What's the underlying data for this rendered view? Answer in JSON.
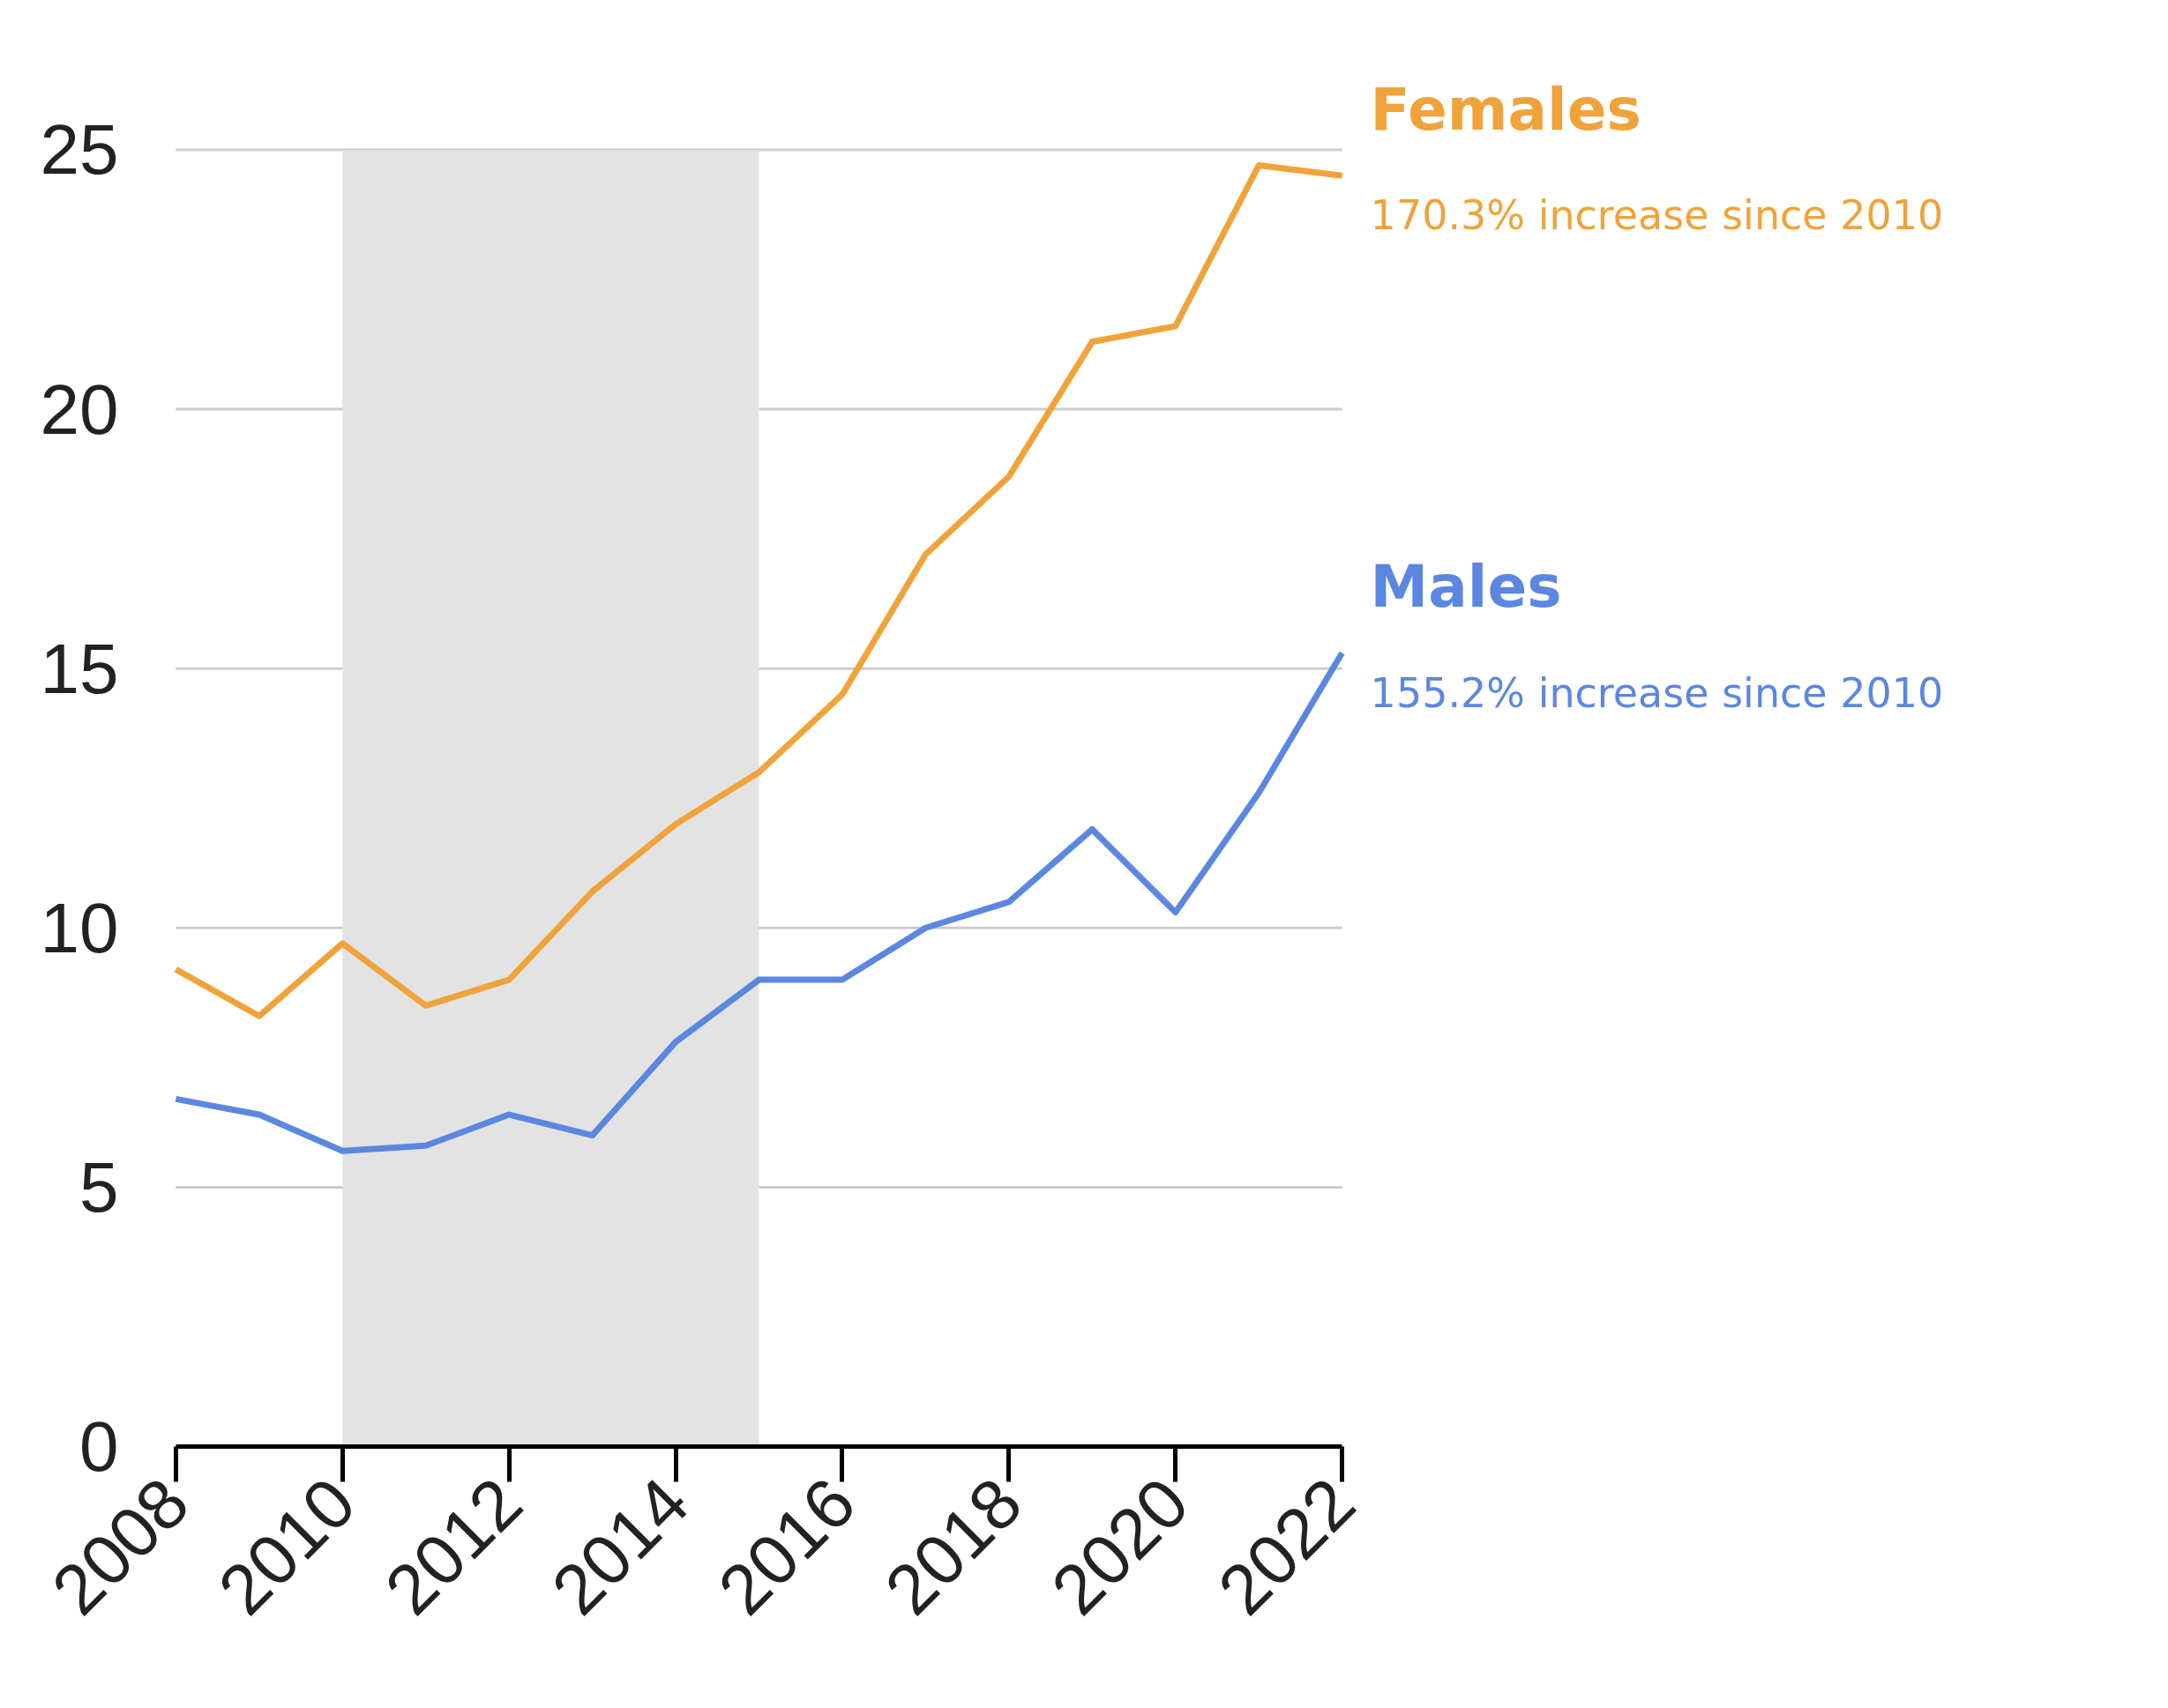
{
  "chart_data": {
    "type": "line",
    "x": [
      2008,
      2009,
      2010,
      2011,
      2012,
      2013,
      2014,
      2015,
      2016,
      2017,
      2018,
      2019,
      2020,
      2021,
      2022
    ],
    "series": [
      {
        "name": "Females",
        "color": "#f0a33a",
        "values": [
          9.2,
          8.3,
          9.7,
          8.5,
          9.0,
          10.7,
          12.0,
          13.0,
          14.5,
          17.2,
          18.7,
          21.3,
          21.6,
          24.7,
          24.5
        ]
      },
      {
        "name": "Males",
        "color": "#5b87e0",
        "values": [
          6.7,
          6.4,
          5.7,
          5.8,
          6.4,
          6.0,
          7.8,
          9.0,
          9.0,
          10.0,
          10.5,
          11.9,
          10.3,
          12.6,
          15.3
        ]
      }
    ],
    "annotations": [
      {
        "text": "170.3% increase since 2010",
        "x": 2022,
        "y": 24.5
      },
      {
        "text": "155.2% increase since 2010",
        "x": 2022,
        "y": 15.3
      }
    ],
    "bands": [
      {
        "axis": "x",
        "from": 2010,
        "to": 2015,
        "color": "#e3e3e3"
      }
    ],
    "xlim": [
      2008,
      2022
    ],
    "xticks": [
      2008,
      2010,
      2012,
      2014,
      2016,
      2018,
      2020,
      2022
    ],
    "ylim": [
      0,
      25
    ],
    "yticks": [
      0,
      5,
      10,
      15,
      20,
      25
    ],
    "grid": "y",
    "marker": "none",
    "line_style": "solid"
  }
}
